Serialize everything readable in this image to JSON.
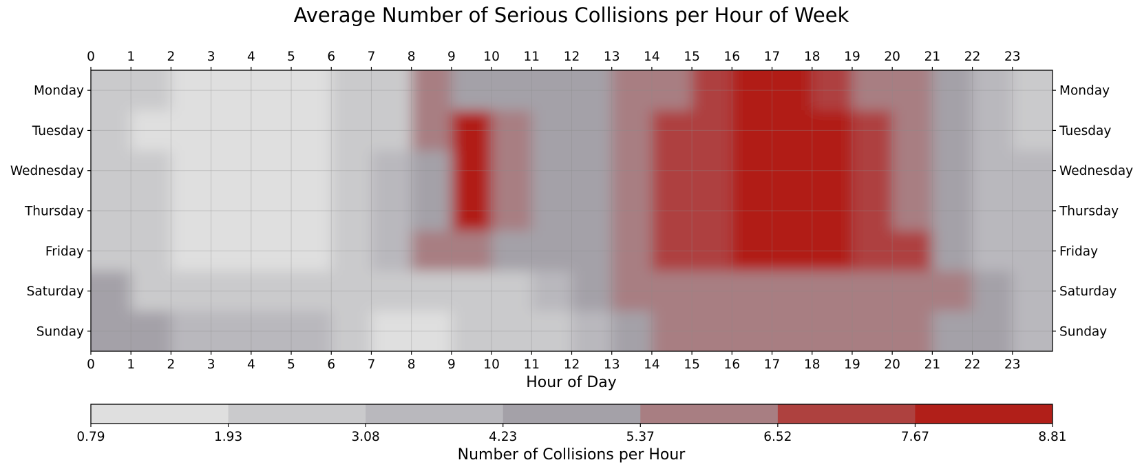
{
  "chart_data": {
    "type": "heatmap",
    "title": "Average Number of Serious Collisions per Hour of Week",
    "xlabel": "Hour of Day",
    "x_ticks": [
      "0",
      "1",
      "2",
      "3",
      "4",
      "5",
      "6",
      "7",
      "8",
      "9",
      "10",
      "11",
      "12",
      "13",
      "14",
      "15",
      "16",
      "17",
      "18",
      "19",
      "20",
      "21",
      "22",
      "23"
    ],
    "y_ticks": [
      "Monday",
      "Tuesday",
      "Wednesday",
      "Thursday",
      "Friday",
      "Saturday",
      "Sunday"
    ],
    "xlim": [
      0,
      24
    ],
    "grid": true,
    "colorbar": {
      "label": "Number of Collisions per Hour",
      "ticks": [
        "0.79",
        "1.93",
        "3.08",
        "4.23",
        "5.37",
        "6.52",
        "7.67",
        "8.81"
      ],
      "level_values": [
        0.79,
        1.93,
        3.08,
        4.23,
        5.37,
        6.52,
        7.67,
        8.81
      ],
      "colors": [
        "#dfdfdf",
        "#cacacc",
        "#b9b8bd",
        "#a4a1a8",
        "#a87e82",
        "#ae413f",
        "#b11f19"
      ],
      "position": "bottom"
    },
    "values": [
      [
        2.6,
        2.0,
        1.2,
        1.0,
        1.0,
        1.1,
        2.2,
        3.0,
        5.8,
        5.3,
        4.7,
        4.6,
        4.6,
        5.7,
        6.3,
        7.0,
        7.8,
        8.2,
        7.6,
        6.5,
        5.8,
        4.6,
        3.8,
        2.8
      ],
      [
        2.2,
        1.8,
        1.1,
        0.9,
        0.9,
        1.0,
        2.0,
        3.0,
        5.9,
        7.7,
        5.5,
        4.4,
        4.9,
        5.8,
        7.2,
        7.1,
        8.3,
        8.6,
        7.9,
        7.0,
        6.0,
        4.6,
        4.0,
        3.0
      ],
      [
        2.5,
        2.0,
        1.2,
        0.9,
        0.9,
        1.0,
        2.0,
        3.3,
        4.7,
        7.9,
        5.4,
        4.4,
        5.0,
        5.8,
        7.2,
        7.1,
        8.4,
        8.7,
        8.0,
        6.7,
        6.0,
        4.6,
        4.0,
        3.1
      ],
      [
        2.5,
        2.1,
        1.3,
        1.0,
        1.0,
        1.1,
        2.2,
        3.3,
        4.5,
        7.9,
        5.4,
        4.4,
        5.0,
        5.9,
        7.3,
        7.2,
        8.5,
        8.8,
        7.9,
        6.7,
        6.0,
        4.9,
        4.2,
        3.2
      ],
      [
        2.8,
        2.4,
        1.7,
        1.4,
        1.4,
        1.5,
        2.6,
        3.4,
        5.7,
        5.5,
        5.0,
        4.5,
        5.1,
        6.0,
        7.4,
        7.6,
        8.1,
        8.8,
        8.2,
        7.2,
        6.6,
        4.8,
        4.0,
        3.9
      ],
      [
        4.3,
        3.0,
        2.5,
        2.3,
        2.3,
        2.4,
        2.5,
        2.4,
        2.6,
        2.8,
        3.0,
        3.6,
        4.4,
        5.5,
        6.4,
        6.5,
        6.5,
        6.4,
        6.5,
        6.5,
        6.0,
        5.6,
        4.5,
        4.0
      ],
      [
        4.6,
        4.4,
        3.4,
        3.2,
        3.3,
        3.6,
        2.8,
        1.6,
        1.6,
        2.8,
        3.0,
        3.0,
        3.8,
        4.5,
        6.3,
        6.4,
        6.4,
        6.4,
        6.4,
        6.4,
        6.0,
        4.4,
        4.3,
        3.4
      ]
    ]
  }
}
